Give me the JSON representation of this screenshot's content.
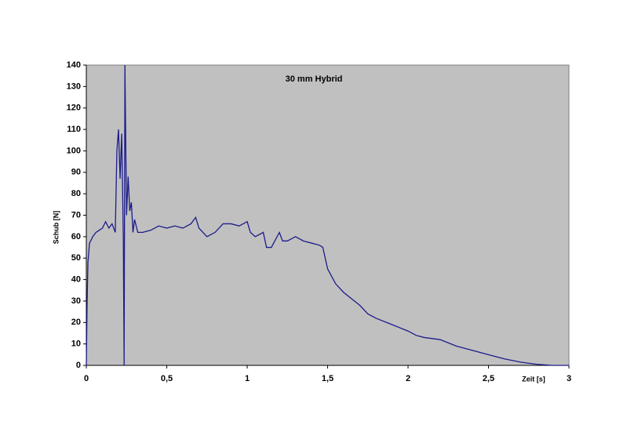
{
  "chart_data": {
    "type": "line",
    "title": "30 mm Hybrid",
    "x_label": "Zeit [s]",
    "y_label": "Schub [N]",
    "x": [
      0,
      0.005,
      0.01,
      0.02,
      0.04,
      0.06,
      0.08,
      0.1,
      0.12,
      0.14,
      0.16,
      0.18,
      0.19,
      0.2,
      0.21,
      0.22,
      0.23,
      0.235,
      0.24,
      0.25,
      0.26,
      0.27,
      0.28,
      0.29,
      0.3,
      0.32,
      0.35,
      0.4,
      0.45,
      0.5,
      0.55,
      0.6,
      0.65,
      0.68,
      0.7,
      0.75,
      0.8,
      0.85,
      0.9,
      0.95,
      1.0,
      1.02,
      1.05,
      1.1,
      1.12,
      1.15,
      1.2,
      1.22,
      1.25,
      1.3,
      1.35,
      1.4,
      1.45,
      1.47,
      1.5,
      1.55,
      1.6,
      1.7,
      1.75,
      1.8,
      1.9,
      2.0,
      2.05,
      2.1,
      2.2,
      2.3,
      2.4,
      2.5,
      2.6,
      2.7,
      2.8,
      2.9,
      3.0
    ],
    "values": [
      0,
      30,
      48,
      57,
      60,
      62,
      63,
      64,
      67,
      64,
      66,
      62,
      100,
      110,
      87,
      108,
      60,
      0,
      140,
      70,
      88,
      72,
      76,
      62,
      68,
      62,
      62,
      63,
      65,
      64,
      65,
      64,
      66,
      69,
      64,
      60,
      62,
      66,
      66,
      65,
      67,
      62,
      60,
      62,
      55,
      55,
      62,
      58,
      58,
      60,
      58,
      57,
      56,
      55,
      45,
      38,
      34,
      28,
      24,
      22,
      19,
      16,
      14,
      13,
      12,
      9,
      7,
      5,
      3,
      1.5,
      0.5,
      0,
      0
    ],
    "color": "#1c1c8a",
    "xlim": [
      0,
      3
    ],
    "ylim": [
      0,
      140
    ],
    "xticks": [
      0,
      {
        "value": 0.5,
        "label": "0,5"
      },
      1,
      {
        "value": 1.5,
        "label": "1,5"
      },
      2,
      {
        "value": 2.5,
        "label": "2,5"
      },
      3
    ],
    "yticks": [
      0,
      10,
      20,
      30,
      40,
      50,
      60,
      70,
      80,
      90,
      100,
      110,
      120,
      130,
      140
    ]
  }
}
